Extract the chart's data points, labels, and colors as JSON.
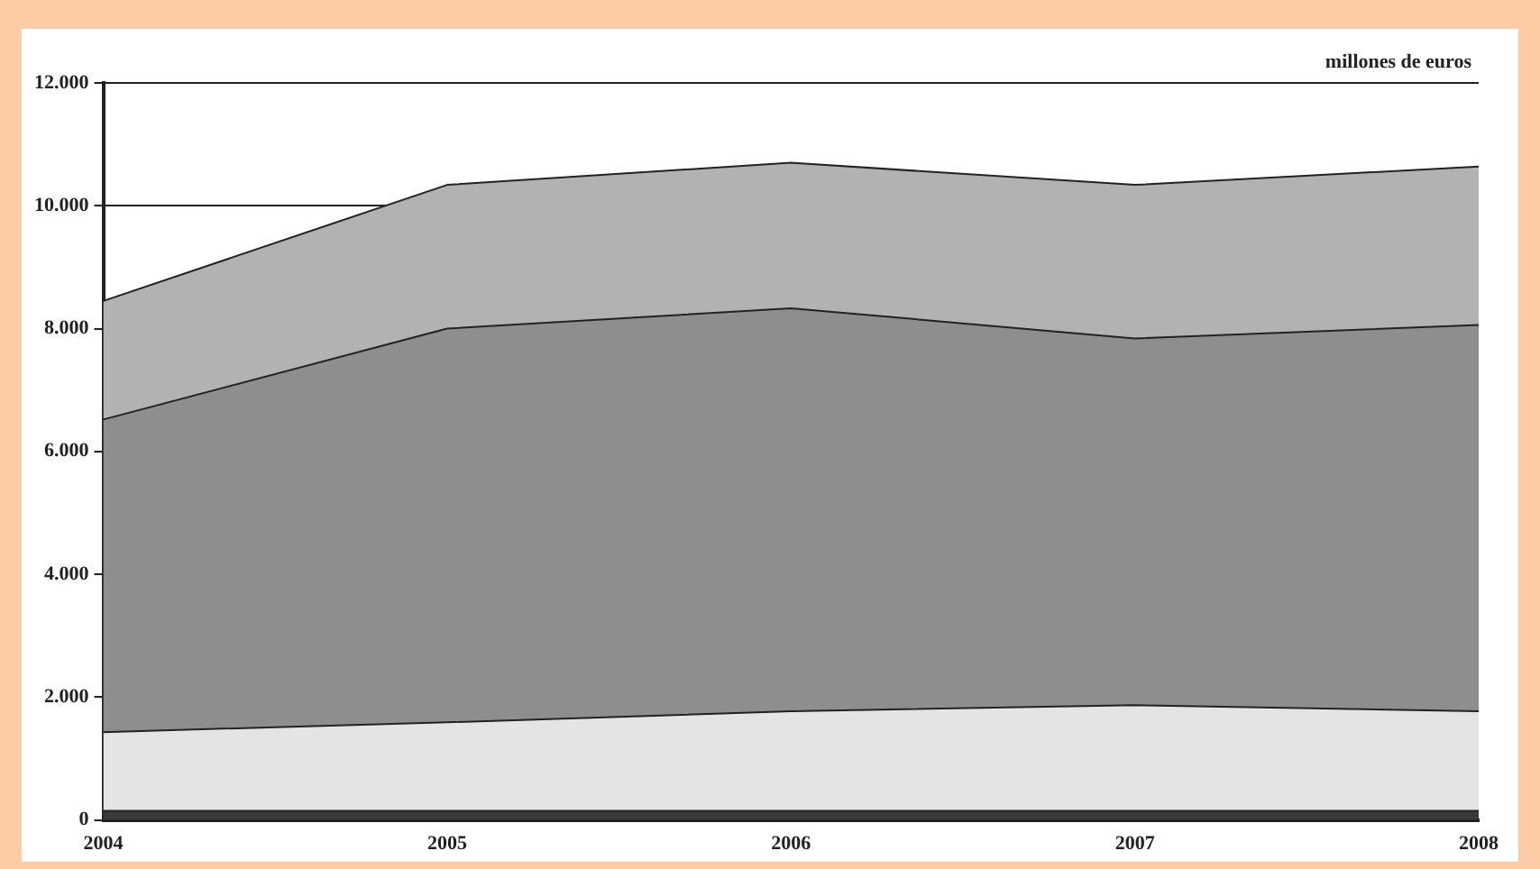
{
  "chart_data": {
    "type": "area",
    "stacked": true,
    "categories": [
      "2004",
      "2005",
      "2006",
      "2007",
      "2008"
    ],
    "series": [
      {
        "color": "#3a3a3a",
        "values": [
          150,
          150,
          150,
          150,
          150
        ]
      },
      {
        "color": "#e4e4e4",
        "values": [
          1280,
          1440,
          1620,
          1720,
          1620
        ]
      },
      {
        "color": "#8e8e8e",
        "values": [
          5090,
          6410,
          6560,
          5970,
          6290
        ]
      },
      {
        "color": "#b2b2b2",
        "values": [
          1930,
          2340,
          2370,
          2500,
          2580
        ]
      }
    ],
    "ylim": [
      0,
      12000
    ],
    "yticks": [
      0,
      {
        "value": 2000,
        "label": "2.000"
      },
      {
        "value": 4000,
        "label": "4.000"
      },
      {
        "value": 6000,
        "label": "6.000"
      },
      {
        "value": 8000,
        "label": "8.000"
      },
      {
        "value": 10000,
        "label": "10.000"
      },
      {
        "value": 12000,
        "label": "12.000"
      }
    ],
    "grid": "y",
    "annotations": [
      "millones de euros"
    ]
  }
}
